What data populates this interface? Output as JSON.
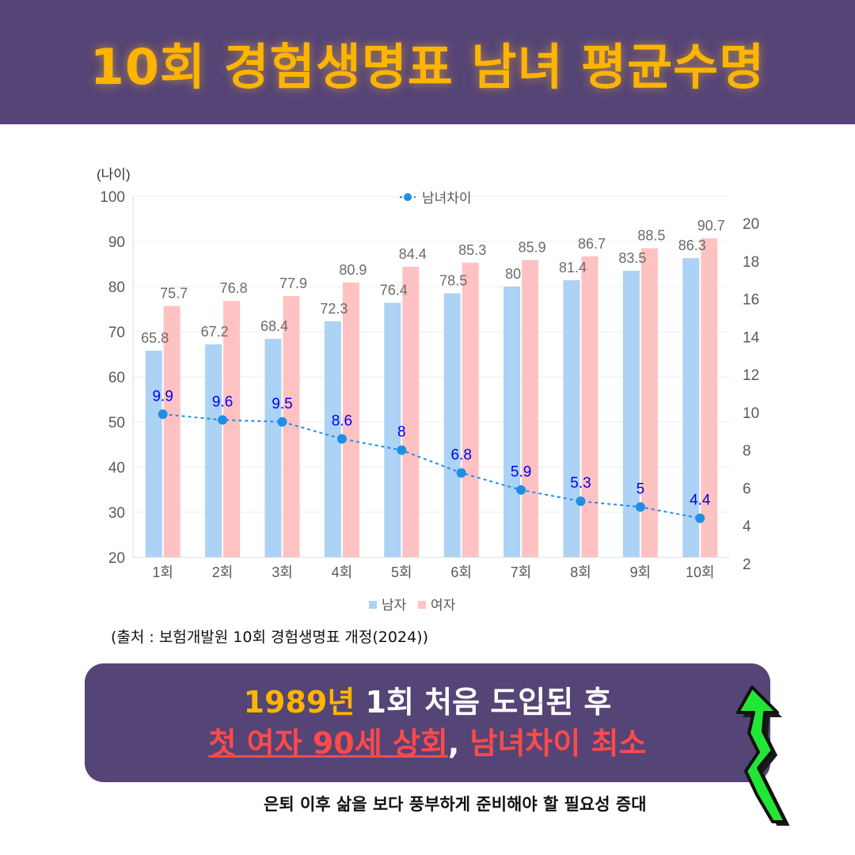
{
  "header": {
    "title": "10회 경험생명표 남녀 평균수명"
  },
  "chart_data": {
    "type": "bar",
    "ylabel": "(나이)",
    "ylim": [
      20,
      100
    ],
    "yticks": [
      20,
      30,
      40,
      50,
      60,
      70,
      80,
      90,
      100
    ],
    "y2lim": [
      2,
      20
    ],
    "y2ticks": [
      2,
      4,
      6,
      8,
      10,
      12,
      14,
      16,
      18,
      20
    ],
    "categories": [
      "1회",
      "2회",
      "3회",
      "4회",
      "5회",
      "6회",
      "7회",
      "8회",
      "9회",
      "10회"
    ],
    "series": [
      {
        "name": "남자",
        "type": "bar",
        "axis": "left",
        "color": "#acd2f5",
        "values": [
          65.8,
          67.2,
          68.4,
          72.3,
          76.4,
          78.5,
          80,
          81.4,
          83.5,
          86.3
        ]
      },
      {
        "name": "여자",
        "type": "bar",
        "axis": "left",
        "color": "#ffc2c2",
        "values": [
          75.7,
          76.8,
          77.9,
          80.9,
          84.4,
          85.3,
          85.9,
          86.7,
          88.5,
          90.7
        ]
      },
      {
        "name": "남녀차이",
        "type": "line",
        "axis": "right",
        "color": "#1f8fe6",
        "values": [
          9.9,
          9.6,
          9.5,
          8.6,
          8,
          6.8,
          5.9,
          5.3,
          5,
          4.4
        ]
      }
    ],
    "legend": {
      "line_position": "top",
      "bar_position": "bottom"
    },
    "grid": true
  },
  "source_text": "(출처 : 보험개발원 10회 경험생명표 개정(2024))",
  "callout": {
    "line1_year": "1989년",
    "line1_rest": " 1회 처음 도입된 후",
    "line2_part1": "첫 여자 90세 상회",
    "line2_comma": ",",
    "line2_part2": " 남녀차이 최소"
  },
  "footnote": "은퇴 이후 삶을 보다 풍부하게 준비해야 할 필요성 증대",
  "icons": {
    "arrow": "zigzag-up-arrow-icon"
  },
  "colors": {
    "header_bg": "#554476",
    "title": "#ffb400",
    "callout_red": "#ff4a4a",
    "arrow": "#22e636",
    "line_label": "#0000ee"
  }
}
